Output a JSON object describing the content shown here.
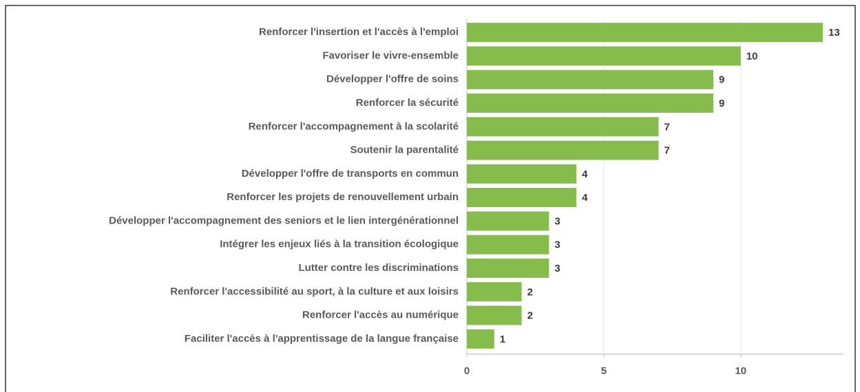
{
  "chart_data": {
    "type": "bar",
    "orientation": "horizontal",
    "categories": [
      "Renforcer l'insertion et l'accès à l'emploi",
      "Favoriser le vivre-ensemble",
      "Développer l'offre de soins",
      "Renforcer la sécurité",
      "Renforcer l'accompagnement à la scolarité",
      "Soutenir la parentalité",
      "Développer l'offre de transports en commun",
      "Renforcer les projets de renouvellement urbain",
      "Développer l'accompagnement des seniors et le lien intergénérationnel",
      "Intégrer les enjeux liés à la transition écologique",
      "Lutter contre les discriminations",
      "Renforcer l'accessibilité au sport, à la culture et aux loisirs",
      "Renforcer l'accès au numérique",
      "Faciliter l'accès à l'apprentissage de la langue française"
    ],
    "values": [
      13,
      10,
      9,
      9,
      7,
      7,
      4,
      4,
      3,
      3,
      3,
      2,
      2,
      1
    ],
    "color": "#86bc4b",
    "xlim": [
      0,
      13.75
    ],
    "xticks": [
      0,
      5,
      10
    ],
    "grid": true
  }
}
